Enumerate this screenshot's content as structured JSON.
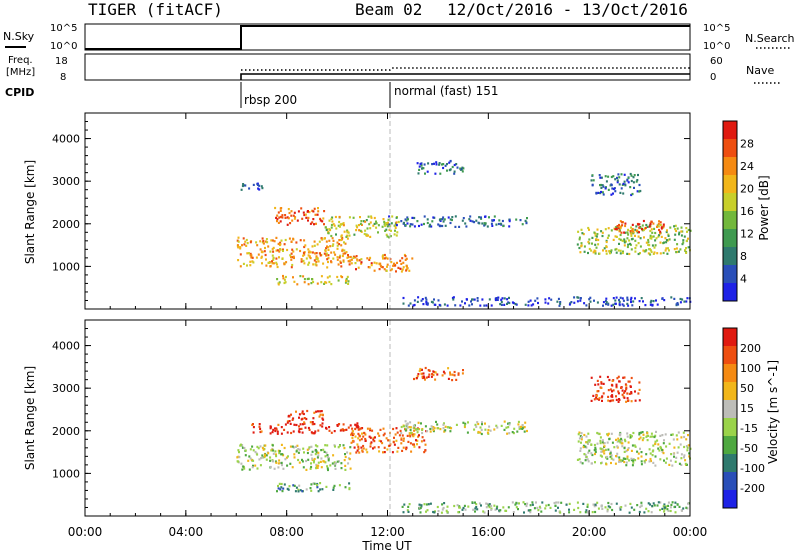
{
  "header": {
    "station": "TIGER (fitACF)",
    "beam": "Beam 02",
    "date_range": "12/Oct/2016 - 13/Oct/2016"
  },
  "status_panels": {
    "nsky": {
      "label": "N.Sky",
      "ticks": [
        "10^5",
        "10^0"
      ],
      "right_label": "N.Search",
      "right_ticks": [
        "10^5",
        "10^0"
      ]
    },
    "freq": {
      "label_line1": "Freq.",
      "label_line2": "[MHz]",
      "ticks": [
        "18",
        "8"
      ],
      "right_label": "Nave",
      "right_ticks": [
        "60",
        "0"
      ]
    },
    "cpid": {
      "label": "CPID",
      "modes": [
        {
          "name": "rbsp 200",
          "start_hour": 6.0
        },
        {
          "name": "normal (fast) 151",
          "start_hour": 12.0
        }
      ]
    }
  },
  "chart_data": [
    {
      "type": "heatmap",
      "name": "power",
      "ylabel": "Slant Range [km]",
      "yticks": [
        1000,
        2000,
        3000,
        4000
      ],
      "ylim": [
        0,
        4600
      ],
      "xlim": [
        0,
        24
      ],
      "colorbar": {
        "label": "Power [dB]",
        "ticks": [
          4,
          8,
          12,
          16,
          20,
          24,
          28
        ],
        "colors": [
          "#1e22e6",
          "#2a4fb8",
          "#2f7a6e",
          "#3f9a50",
          "#72b83c",
          "#c8cf2a",
          "#f1b61a",
          "#f58a12",
          "#ee4e10",
          "#e01a10"
        ]
      },
      "echo_regions": [
        {
          "t0": 6.0,
          "t1": 7.0,
          "r0": 2800,
          "r1": 3000,
          "level": 0.15
        },
        {
          "t0": 6.0,
          "t1": 10.5,
          "r0": 1000,
          "r1": 1700,
          "level": 0.7
        },
        {
          "t0": 7.5,
          "t1": 9.5,
          "r0": 2000,
          "r1": 2400,
          "level": 0.85
        },
        {
          "t0": 9.5,
          "t1": 12.5,
          "r0": 1700,
          "r1": 2200,
          "level": 0.55
        },
        {
          "t0": 12.0,
          "t1": 17.5,
          "r0": 1950,
          "r1": 2200,
          "level": 0.2
        },
        {
          "t0": 7.5,
          "t1": 10.5,
          "r0": 600,
          "r1": 800,
          "level": 0.6
        },
        {
          "t0": 10.5,
          "t1": 13.0,
          "r0": 900,
          "r1": 1300,
          "level": 0.75
        },
        {
          "t0": 12.5,
          "t1": 24.0,
          "r0": 100,
          "r1": 300,
          "level": 0.1
        },
        {
          "t0": 19.5,
          "t1": 24.0,
          "r0": 1300,
          "r1": 2000,
          "level": 0.5
        },
        {
          "t0": 21.0,
          "t1": 23.0,
          "r0": 1800,
          "r1": 2100,
          "level": 0.85
        },
        {
          "t0": 13.0,
          "t1": 15.0,
          "r0": 3200,
          "r1": 3500,
          "level": 0.2
        },
        {
          "t0": 20.0,
          "t1": 22.0,
          "r0": 2700,
          "r1": 3200,
          "level": 0.2
        }
      ]
    },
    {
      "type": "heatmap",
      "name": "velocity",
      "ylabel": "Slant Range [km]",
      "yticks": [
        1000,
        2000,
        3000,
        4000
      ],
      "ylim": [
        0,
        4600
      ],
      "xlim": [
        0,
        24
      ],
      "colorbar": {
        "label": "Velocity [m s^-1]",
        "ticks": [
          200,
          100,
          50,
          15,
          -15,
          -50,
          -100,
          -200
        ],
        "colors": [
          "#1e22e6",
          "#2a4fb8",
          "#2f7a6e",
          "#4ea840",
          "#9ad34a",
          "#bdbdb8",
          "#f1b61a",
          "#f58a12",
          "#ee4e10",
          "#e01a10"
        ]
      },
      "echo_regions": [
        {
          "t0": 6.0,
          "t1": 10.5,
          "r0": 1100,
          "r1": 1700,
          "level": 0.5
        },
        {
          "t0": 6.5,
          "t1": 11.0,
          "r0": 1950,
          "r1": 2200,
          "level": 0.95
        },
        {
          "t0": 8.0,
          "t1": 9.5,
          "r0": 2200,
          "r1": 2500,
          "level": 0.9
        },
        {
          "t0": 10.5,
          "t1": 13.5,
          "r0": 1500,
          "r1": 2100,
          "level": 0.8
        },
        {
          "t0": 12.5,
          "t1": 17.5,
          "r0": 1950,
          "r1": 2250,
          "level": 0.5
        },
        {
          "t0": 7.5,
          "t1": 10.5,
          "r0": 600,
          "r1": 800,
          "level": 0.35
        },
        {
          "t0": 12.5,
          "t1": 24.0,
          "r0": 100,
          "r1": 350,
          "level": 0.4
        },
        {
          "t0": 19.5,
          "t1": 24.0,
          "r0": 1200,
          "r1": 2000,
          "level": 0.5
        },
        {
          "t0": 13.0,
          "t1": 15.0,
          "r0": 3200,
          "r1": 3500,
          "level": 0.85
        },
        {
          "t0": 20.0,
          "t1": 22.0,
          "r0": 2700,
          "r1": 3300,
          "level": 0.9
        }
      ]
    }
  ],
  "time_axis": {
    "ticks": [
      "00:00",
      "04:00",
      "08:00",
      "12:00",
      "16:00",
      "20:00",
      "00:00"
    ],
    "label": "Time UT"
  }
}
